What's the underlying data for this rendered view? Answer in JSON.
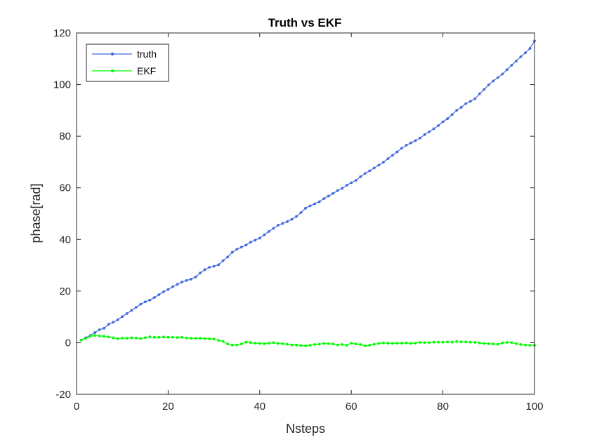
{
  "chart_data": {
    "type": "line",
    "title": "Truth vs EKF",
    "xlabel": "Nsteps",
    "ylabel": "phase[rad]",
    "xlim": [
      0,
      100
    ],
    "ylim": [
      -20,
      120
    ],
    "xticks": [
      0,
      20,
      40,
      60,
      80,
      100
    ],
    "yticks": [
      -20,
      0,
      20,
      40,
      60,
      80,
      100,
      120
    ],
    "grid": false,
    "legend_position": "top-left",
    "x": [
      1,
      2,
      3,
      4,
      5,
      6,
      7,
      8,
      9,
      10,
      11,
      12,
      13,
      14,
      15,
      16,
      17,
      18,
      19,
      20,
      21,
      22,
      23,
      24,
      25,
      26,
      27,
      28,
      29,
      30,
      31,
      32,
      33,
      34,
      35,
      36,
      37,
      38,
      39,
      40,
      41,
      42,
      43,
      44,
      45,
      46,
      47,
      48,
      49,
      50,
      51,
      52,
      53,
      54,
      55,
      56,
      57,
      58,
      59,
      60,
      61,
      62,
      63,
      64,
      65,
      66,
      67,
      68,
      69,
      70,
      71,
      72,
      73,
      74,
      75,
      76,
      77,
      78,
      79,
      80,
      81,
      82,
      83,
      84,
      85,
      86,
      87,
      88,
      89,
      90,
      91,
      92,
      93,
      94,
      95,
      96,
      97,
      98,
      99,
      100
    ],
    "series": [
      {
        "name": "truth",
        "color": "#4169e1",
        "values": [
          1.0,
          1.9,
          2.8,
          3.9,
          5.0,
          5.6,
          7.1,
          7.9,
          8.9,
          10.1,
          11.3,
          12.5,
          13.7,
          14.9,
          15.8,
          16.5,
          17.5,
          18.6,
          19.7,
          20.6,
          21.7,
          22.6,
          23.5,
          24.1,
          24.6,
          25.5,
          27.0,
          28.3,
          29.2,
          29.6,
          30.2,
          31.8,
          33.2,
          35.0,
          36.2,
          37.0,
          37.8,
          38.9,
          39.7,
          40.5,
          41.8,
          43.1,
          44.3,
          45.5,
          46.2,
          46.9,
          47.8,
          48.9,
          50.4,
          52.1,
          53.0,
          53.8,
          54.6,
          55.8,
          56.8,
          57.8,
          58.9,
          59.8,
          61.0,
          62.0,
          62.9,
          64.3,
          65.6,
          66.6,
          67.7,
          68.8,
          69.9,
          71.3,
          72.6,
          73.9,
          75.3,
          76.5,
          77.4,
          78.3,
          79.3,
          80.6,
          81.7,
          82.9,
          84.1,
          85.6,
          86.8,
          88.4,
          90.0,
          91.2,
          92.6,
          93.5,
          94.5,
          96.4,
          98.1,
          99.9,
          101.4,
          102.7,
          104.1,
          105.8,
          107.5,
          109.1,
          110.8,
          112.3,
          114.0,
          116.9
        ]
      },
      {
        "name": "EKF",
        "color": "#00ff00",
        "values": [
          1.0,
          1.6,
          2.5,
          2.8,
          2.6,
          2.5,
          2.2,
          1.9,
          1.5,
          1.8,
          1.7,
          1.9,
          1.8,
          1.6,
          1.9,
          2.3,
          2.1,
          2.1,
          2.2,
          2.1,
          2.1,
          2.0,
          2.1,
          1.8,
          1.7,
          1.7,
          1.7,
          1.6,
          1.5,
          1.4,
          0.9,
          0.5,
          -0.5,
          -0.9,
          -0.9,
          -0.5,
          0.2,
          0.0,
          -0.2,
          -0.3,
          -0.4,
          -0.2,
          0.0,
          -0.3,
          -0.4,
          -0.6,
          -0.9,
          -0.9,
          -1.1,
          -1.2,
          -1.0,
          -0.7,
          -0.6,
          -0.3,
          -0.4,
          -0.5,
          -0.9,
          -0.7,
          -1.0,
          -0.2,
          -0.5,
          -0.7,
          -1.2,
          -1.0,
          -0.6,
          -0.3,
          -0.1,
          -0.2,
          -0.3,
          -0.2,
          -0.2,
          -0.1,
          -0.3,
          -0.2,
          0.1,
          0.0,
          0.0,
          0.2,
          0.2,
          0.2,
          0.3,
          0.2,
          0.5,
          0.3,
          0.3,
          0.2,
          0.1,
          -0.1,
          -0.3,
          -0.4,
          -0.5,
          -0.6,
          -0.1,
          0.1,
          0.0,
          -0.4,
          -0.7,
          -0.9,
          -1.0,
          -1.0
        ]
      }
    ]
  }
}
